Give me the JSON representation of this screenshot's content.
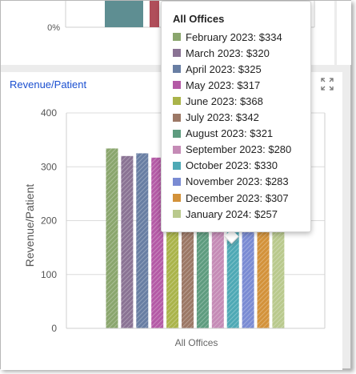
{
  "top_panel": {
    "tick_label": "0%"
  },
  "revenue_panel": {
    "title": "Revenue/Patient"
  },
  "tooltip": {
    "title": "All Offices",
    "rows": [
      "February 2023: $334",
      "March 2023: $320",
      "April 2023: $325",
      "May 2023: $317",
      "June 2023: $368",
      "July 2023: $342",
      "August 2023: $321",
      "September 2023: $280",
      "October 2023: $330",
      "November 2023: $283",
      "December 2023: $307",
      "January 2024: $257"
    ]
  },
  "chart_data": {
    "type": "bar",
    "title": "Revenue/Patient",
    "xlabel": "",
    "ylabel": "Revenue/Patient",
    "categories": [
      "All Offices"
    ],
    "ylim": [
      0,
      400
    ],
    "yticks": [
      0,
      100,
      200,
      300,
      400
    ],
    "grid": true,
    "series": [
      {
        "name": "February 2023",
        "values": [
          334
        ],
        "color": "#8aa66d"
      },
      {
        "name": "March 2023",
        "values": [
          320
        ],
        "color": "#8a7394"
      },
      {
        "name": "April 2023",
        "values": [
          325
        ],
        "color": "#687ea3"
      },
      {
        "name": "May 2023",
        "values": [
          317
        ],
        "color": "#b45aa6"
      },
      {
        "name": "June 2023",
        "values": [
          368
        ],
        "color": "#aab44a"
      },
      {
        "name": "July 2023",
        "values": [
          342
        ],
        "color": "#9c7866"
      },
      {
        "name": "August 2023",
        "values": [
          321
        ],
        "color": "#5e9c7f"
      },
      {
        "name": "September 2023",
        "values": [
          280
        ],
        "color": "#c58bb6"
      },
      {
        "name": "October 2023",
        "values": [
          330
        ],
        "color": "#4ea9b5"
      },
      {
        "name": "November 2023",
        "values": [
          283
        ],
        "color": "#7a8bd3"
      },
      {
        "name": "December 2023",
        "values": [
          307
        ],
        "color": "#d3923a"
      },
      {
        "name": "January 2024",
        "values": [
          257
        ],
        "color": "#b9c98d"
      }
    ]
  },
  "top_chart_data": {
    "type": "bar",
    "series_colors": [
      "#5e8e92",
      "#b04e5a"
    ]
  }
}
